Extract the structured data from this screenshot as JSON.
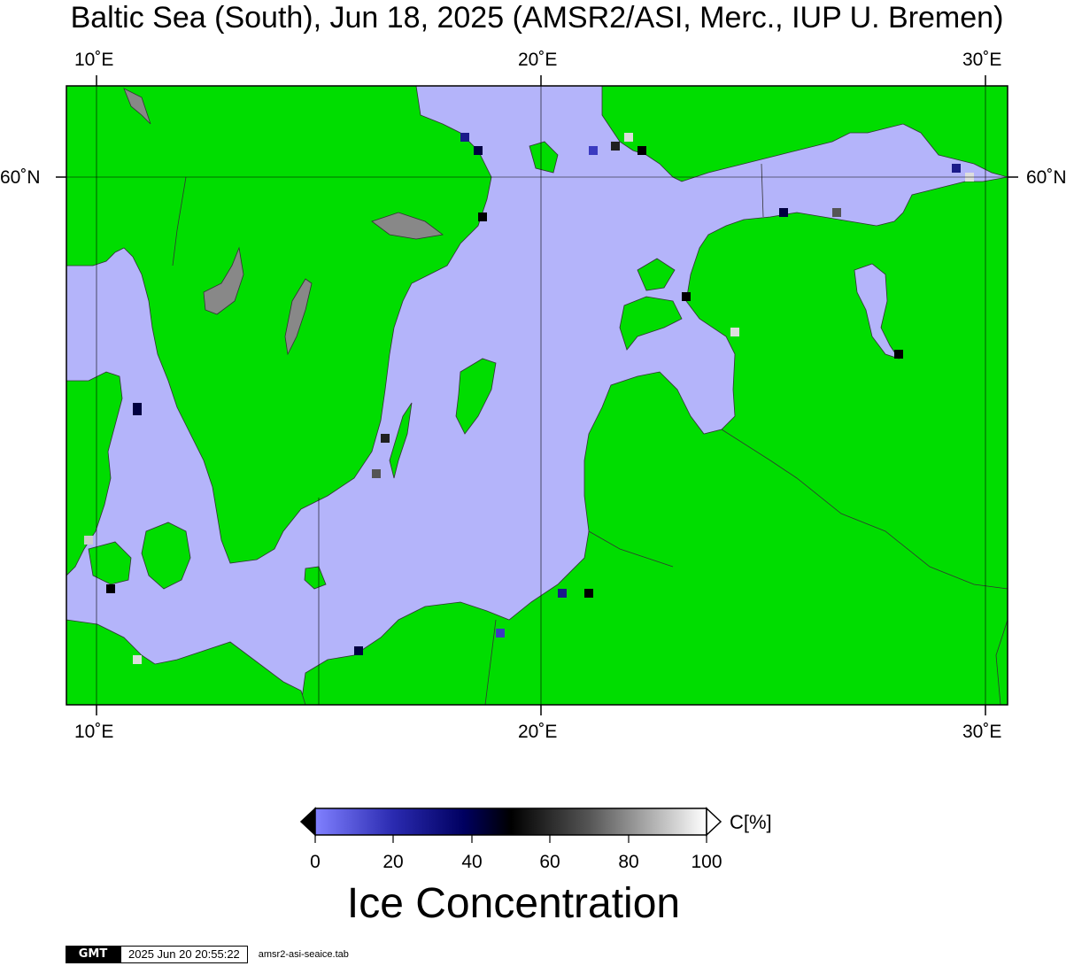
{
  "title": "Baltic Sea (South), Jun 18, 2025 (AMSR2/ASI, Merc., IUP U. Bremen)",
  "axes": {
    "top_ticks": [
      "10˚E",
      "20˚E",
      "30˚E"
    ],
    "bottom_ticks": [
      "10˚E",
      "20˚E",
      "30˚E"
    ],
    "left_ticks": [
      "60˚N"
    ],
    "right_ticks": [
      "60˚N"
    ]
  },
  "colors": {
    "land": "#00dd00",
    "open_water": "#b4b4fa",
    "no_data": "#888888"
  },
  "colorbar": {
    "title": "Ice Concentration",
    "unit": "C[%]",
    "ticks": [
      "0",
      "20",
      "40",
      "60",
      "80",
      "100"
    ],
    "min": 0,
    "max": 100
  },
  "footer": {
    "logo": "GMT",
    "timestamp": "2025 Jun 20 20:55:22",
    "file": "amsr2-asi-seaice.tab"
  }
}
